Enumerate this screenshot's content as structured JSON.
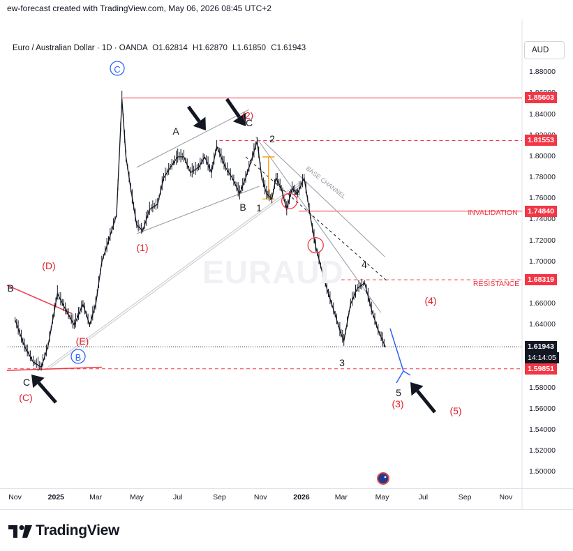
{
  "header": {
    "caption": "ew-forecast created with TradingView.com, May 06, 2026 08:45 UTC+2"
  },
  "symbol": {
    "name": "Euro / Australian Dollar",
    "timeframe": "1D",
    "exchange": "OANDA",
    "ohlc": {
      "o_label": "O",
      "o": "1.62814",
      "h_label": "H",
      "h": "1.62870",
      "l_label": "L",
      "l": "1.61850",
      "c_label": "C",
      "c": "1.61943"
    }
  },
  "currency_button": "AUD",
  "watermark": "EURAUD",
  "footer": {
    "brand": "TradingView"
  },
  "colors": {
    "candle": "#131722",
    "red_line": "#f23645",
    "grey_line": "#9598a1",
    "blue": "#2962ff",
    "orange": "#ff9800",
    "black_arrow": "#131722",
    "red_label": "#e11d2a"
  },
  "chart_data": {
    "type": "line",
    "title": "Euro / Australian Dollar · 1D · OANDA",
    "xlabel": "",
    "ylabel": "",
    "ylim": [
      1.485,
      1.912
    ],
    "x_ticks": [
      "Nov",
      "2025",
      "Mar",
      "May",
      "Jul",
      "Sep",
      "Nov",
      "2026",
      "Mar",
      "May",
      "Jul",
      "Sep",
      "Nov"
    ],
    "y_ticks": [
      "1.88000",
      "1.86000",
      "1.84000",
      "1.82000",
      "1.80000",
      "1.78000",
      "1.76000",
      "1.74000",
      "1.72000",
      "1.70000",
      "1.68000",
      "1.66000",
      "1.64000",
      "1.62000",
      "1.60000",
      "1.58000",
      "1.56000",
      "1.54000",
      "1.52000",
      "1.50000"
    ],
    "series": [
      {
        "x": [
          "2024-11-01",
          "2024-11-15",
          "2024-11-28",
          "2024-12-10",
          "2024-12-20",
          "2025-01-03",
          "2025-01-15",
          "2025-01-28",
          "2025-02-10",
          "2025-02-20",
          "2025-03-01",
          "2025-03-10",
          "2025-03-20",
          "2025-04-01",
          "2025-04-09",
          "2025-04-15",
          "2025-04-22",
          "2025-05-01",
          "2025-05-10",
          "2025-05-20",
          "2025-06-01",
          "2025-06-10",
          "2025-06-20",
          "2025-07-01",
          "2025-07-10",
          "2025-07-20",
          "2025-08-01",
          "2025-08-10",
          "2025-08-20",
          "2025-08-28",
          "2025-09-10",
          "2025-09-20",
          "2025-10-01",
          "2025-10-10",
          "2025-10-20",
          "2025-10-27",
          "2025-11-03",
          "2025-11-10",
          "2025-11-18",
          "2025-11-24",
          "2025-12-02",
          "2025-12-10",
          "2025-12-18",
          "2025-12-26",
          "2026-01-05",
          "2026-01-15",
          "2026-01-22",
          "2026-02-01",
          "2026-02-10",
          "2026-02-20",
          "2026-02-27",
          "2026-03-05",
          "2026-03-15",
          "2026-03-25",
          "2026-04-05",
          "2026-04-15",
          "2026-04-25",
          "2026-05-06"
        ],
        "values": [
          1.645,
          1.62,
          1.605,
          1.6,
          1.62,
          1.67,
          1.655,
          1.64,
          1.66,
          1.64,
          1.66,
          1.7,
          1.72,
          1.745,
          1.855,
          1.8,
          1.77,
          1.735,
          1.73,
          1.75,
          1.755,
          1.78,
          1.79,
          1.8,
          1.8,
          1.785,
          1.79,
          1.8,
          1.785,
          1.81,
          1.79,
          1.78,
          1.765,
          1.78,
          1.8,
          1.815,
          1.78,
          1.765,
          1.76,
          1.78,
          1.77,
          1.75,
          1.77,
          1.765,
          1.78,
          1.74,
          1.715,
          1.69,
          1.67,
          1.65,
          1.635,
          1.625,
          1.66,
          1.675,
          1.68,
          1.655,
          1.635,
          1.619
        ]
      }
    ],
    "price_tags": [
      {
        "label": "1.85603",
        "value": 1.85603
      },
      {
        "label": "1.81553",
        "value": 1.81553
      },
      {
        "label": "1.74840",
        "value": 1.7484
      },
      {
        "label": "1.68319",
        "value": 1.68319
      },
      {
        "label": "1.61943",
        "value": 1.61943,
        "countdown": "14:14:05"
      },
      {
        "label": "1.59851",
        "value": 1.59851
      }
    ],
    "annotations": {
      "invalidation": "INVALIDATION",
      "resistance": "RESISTANCE",
      "base_channel": "BASE CHANNEL",
      "waves": {
        "c_circle": "C",
        "b_circle": "B",
        "w1_paren": "(1)",
        "w2_paren": "(2)",
        "w3_paren": "(3)",
        "w4_paren": "(4)",
        "w5_paren": "(5)",
        "d_paren": "(D)",
        "e_paren": "(E)",
        "c_paren": "(C)",
        "a": "A",
        "b_mid": "B",
        "c_top": "C",
        "n1": "1",
        "n2": "2",
        "n3": "3",
        "n4": "4",
        "n5": "5",
        "b_left": "B",
        "c_left": "C",
        "w2_small": "2"
      }
    }
  }
}
